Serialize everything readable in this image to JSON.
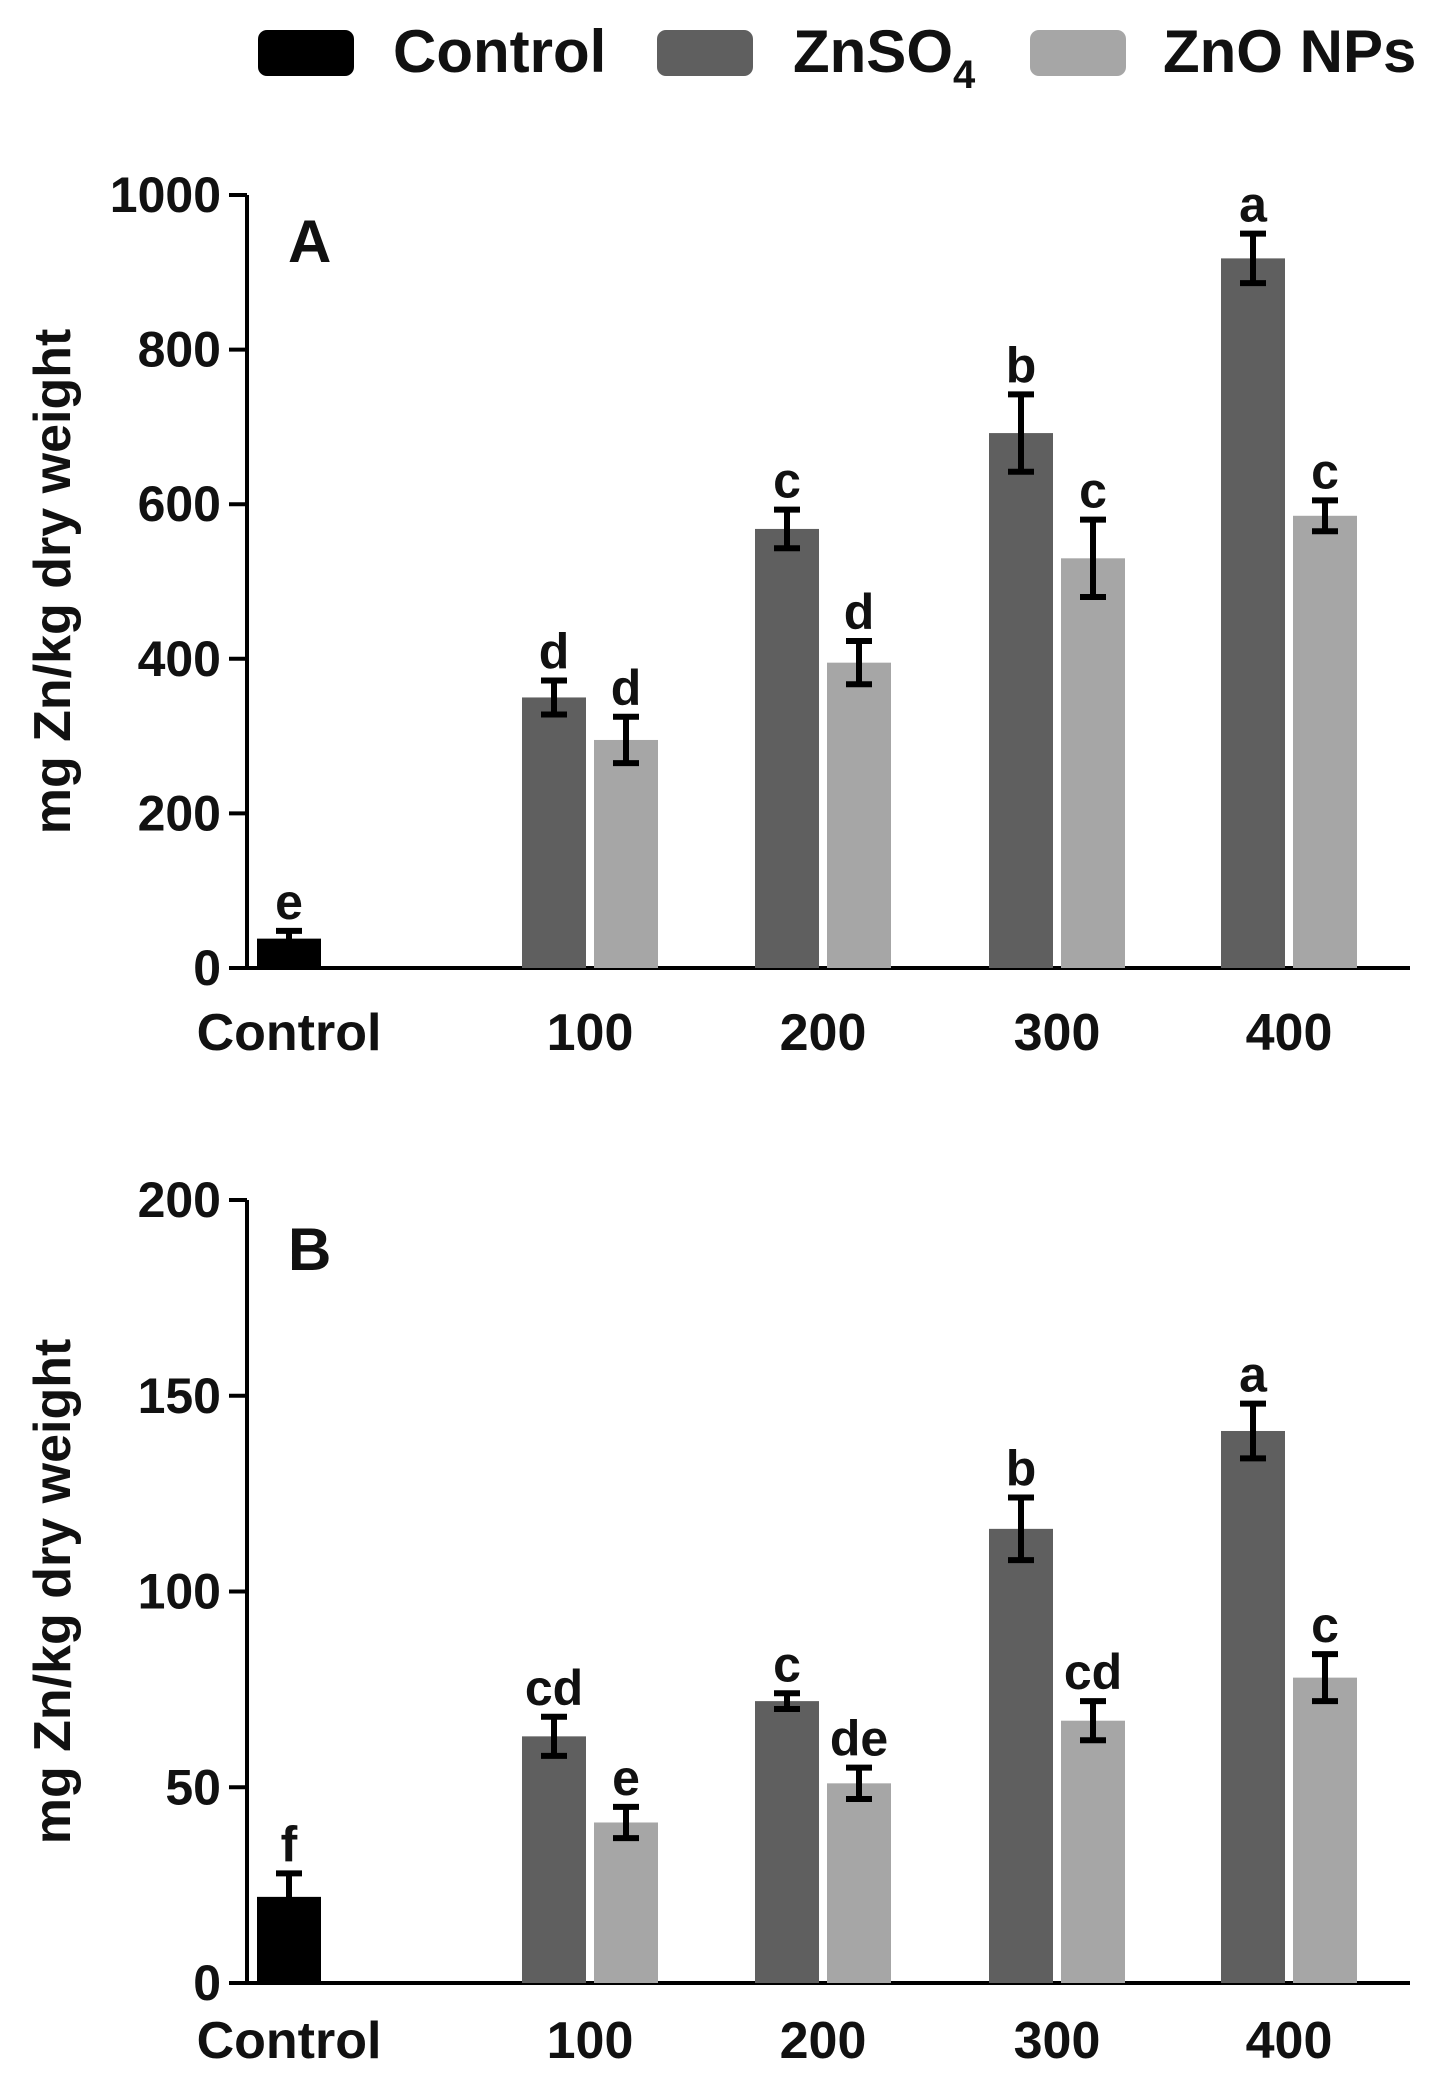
{
  "legend": {
    "items": [
      {
        "name": "Control",
        "color": "#000000"
      },
      {
        "name": "ZnSO",
        "subscript": "4",
        "color": "#5f5f5f"
      },
      {
        "name": "ZnO NPs",
        "color": "#a6a6a6"
      }
    ]
  },
  "chart_data": [
    {
      "type": "bar",
      "panel_label": "A",
      "categories": [
        "Control",
        "100",
        "200",
        "300",
        "400"
      ],
      "ylabel": "mg Zn/kg dry weight",
      "xlabel": "",
      "ylim": [
        0,
        1000
      ],
      "yticks": [
        0,
        200,
        400,
        600,
        800,
        1000
      ],
      "series": [
        {
          "name": "Control",
          "values": [
            38,
            null,
            null,
            null,
            null
          ],
          "errors": [
            10,
            null,
            null,
            null,
            null
          ],
          "letters": [
            "e",
            null,
            null,
            null,
            null
          ]
        },
        {
          "name": "ZnSO4",
          "values": [
            null,
            350,
            568,
            692,
            918
          ],
          "errors": [
            null,
            22,
            25,
            50,
            32
          ],
          "letters": [
            null,
            "d",
            "c",
            "b",
            "a"
          ]
        },
        {
          "name": "ZnO NPs",
          "values": [
            null,
            295,
            395,
            530,
            585
          ],
          "errors": [
            null,
            30,
            28,
            50,
            20
          ],
          "letters": [
            null,
            "d",
            "d",
            "c",
            "c"
          ]
        }
      ]
    },
    {
      "type": "bar",
      "panel_label": "B",
      "categories": [
        "Control",
        "100",
        "200",
        "300",
        "400"
      ],
      "ylabel": "mg Zn/kg dry weight",
      "xlabel": "",
      "ylim": [
        0,
        200
      ],
      "yticks": [
        0,
        50,
        100,
        150,
        200
      ],
      "series": [
        {
          "name": "Control",
          "values": [
            22,
            null,
            null,
            null,
            null
          ],
          "errors": [
            6,
            null,
            null,
            null,
            null
          ],
          "letters": [
            "f",
            null,
            null,
            null,
            null
          ]
        },
        {
          "name": "ZnSO4",
          "values": [
            null,
            63,
            72,
            116,
            141
          ],
          "errors": [
            null,
            5,
            2,
            8,
            7
          ],
          "letters": [
            null,
            "cd",
            "c",
            "b",
            "a"
          ]
        },
        {
          "name": "ZnO NPs",
          "values": [
            null,
            41,
            51,
            67,
            78
          ],
          "errors": [
            null,
            4,
            4,
            5,
            6
          ],
          "letters": [
            null,
            "e",
            "de",
            "cd",
            "c"
          ]
        }
      ]
    }
  ]
}
